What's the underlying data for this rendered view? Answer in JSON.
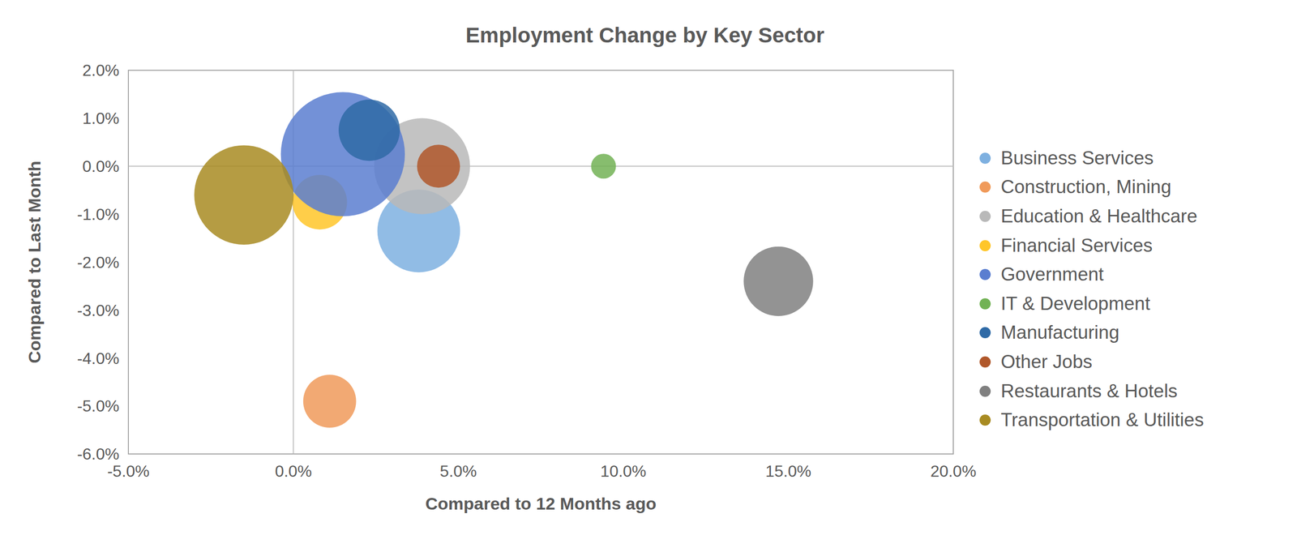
{
  "chart_data": {
    "type": "bubble",
    "title": "Employment Change by Key Sector",
    "x_label": "Compared to 12 Months ago",
    "y_label": "Compared to Last Month",
    "xlim": [
      -5,
      20
    ],
    "xticks": [
      {
        "value": -5,
        "label": "-5.0%"
      },
      {
        "value": 0,
        "label": "0.0%"
      },
      {
        "value": 5,
        "label": "5.0%"
      },
      {
        "value": 10,
        "label": "10.0%"
      },
      {
        "value": 15,
        "label": "15.0%"
      },
      {
        "value": 20,
        "label": "20.0%"
      }
    ],
    "ylim": [
      -6,
      2
    ],
    "yticks": [
      {
        "value": -6,
        "label": "-6.0%"
      },
      {
        "value": -5,
        "label": "-5.0%"
      },
      {
        "value": -4,
        "label": "-4.0%"
      },
      {
        "value": -3,
        "label": "-3.0%"
      },
      {
        "value": -2,
        "label": "-2.0%"
      },
      {
        "value": -1,
        "label": "-1.0%"
      },
      {
        "value": 0,
        "label": "0.0%"
      },
      {
        "value": 1,
        "label": "1.0%"
      },
      {
        "value": 2,
        "label": "2.0%"
      }
    ],
    "grid": false,
    "legend": "right",
    "series": [
      {
        "name": "Business Services",
        "color": "#7eb0e0",
        "x": [
          3.8
        ],
        "y": [
          -1.35
        ],
        "size": [
          2500
        ]
      },
      {
        "name": "Construction, Mining",
        "color": "#f09a5a",
        "x": [
          1.1
        ],
        "y": [
          -4.9
        ],
        "size": [
          1024
        ]
      },
      {
        "name": "Education & Healthcare",
        "color": "#b9b9b9",
        "x": [
          3.9
        ],
        "y": [
          0.0
        ],
        "size": [
          3364
        ]
      },
      {
        "name": "Financial Services",
        "color": "#ffc629",
        "x": [
          0.8
        ],
        "y": [
          -0.75
        ],
        "size": [
          1089
        ]
      },
      {
        "name": "Government",
        "color": "#5a7ed0",
        "x": [
          1.5
        ],
        "y": [
          0.25
        ],
        "size": [
          5625
        ]
      },
      {
        "name": "IT & Development",
        "color": "#72b255",
        "x": [
          9.4
        ],
        "y": [
          0.0
        ],
        "size": [
          225
        ]
      },
      {
        "name": "Manufacturing",
        "color": "#2f6aa6",
        "x": [
          2.3
        ],
        "y": [
          0.75
        ],
        "size": [
          1369
        ]
      },
      {
        "name": "Other Jobs",
        "color": "#b0572a",
        "x": [
          4.4
        ],
        "y": [
          0.0
        ],
        "size": [
          676
        ]
      },
      {
        "name": "Restaurants & Hotels",
        "color": "#808080",
        "x": [
          14.7
        ],
        "y": [
          -2.4
        ],
        "size": [
          1764
        ]
      },
      {
        "name": "Transportation & Utilities",
        "color": "#a88b22",
        "x": [
          -1.5
        ],
        "y": [
          -0.6
        ],
        "size": [
          3600
        ]
      }
    ]
  }
}
